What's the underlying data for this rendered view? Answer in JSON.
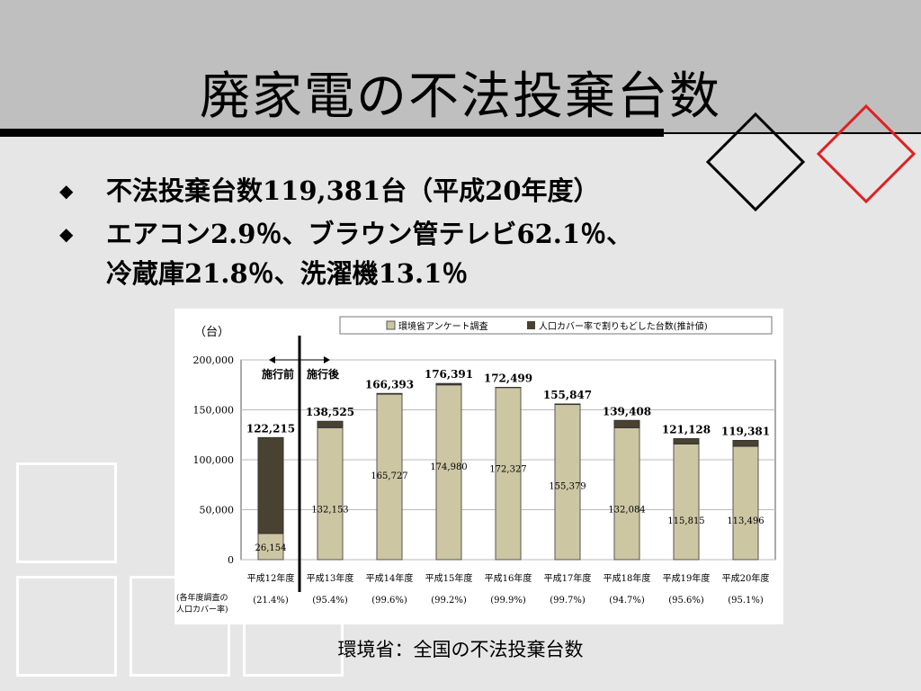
{
  "slide": {
    "title": "廃家電の不法投棄台数"
  },
  "bullets": [
    {
      "lines": [
        "不法投棄台数119,381台（平成20年度）"
      ]
    },
    {
      "lines": [
        "エアコン2.9％、ブラウン管テレビ62.1％、",
        "冷蔵庫21.8％、洗濯機13.1％"
      ]
    }
  ],
  "caption": "環境省：全国の不法投棄台数",
  "colors": {
    "survey": "#cdc6a3",
    "estimate": "#4a4230",
    "header": "#bfbfbf",
    "accent": "#e02020"
  },
  "chart_data": {
    "type": "bar",
    "stacked": true,
    "unit_label": "（台）",
    "categories": [
      "平成12年度",
      "平成13年度",
      "平成14年度",
      "平成15年度",
      "平成16年度",
      "平成17年度",
      "平成18年度",
      "平成19年度",
      "平成20年度"
    ],
    "coverage": [
      "(21.4%)",
      "(95.4%)",
      "(99.6%)",
      "(99.2%)",
      "(99.9%)",
      "(99.7%)",
      "(94.7%)",
      "(95.6%)",
      "(95.1%)"
    ],
    "coverage_label": [
      "(各年度調査の",
      "人口カバー率)"
    ],
    "series": [
      {
        "name": "環境省アンケート調査",
        "values": [
          26154,
          132153,
          165727,
          174980,
          172327,
          155379,
          132084,
          115815,
          113496
        ],
        "labels": [
          "26,154",
          "132,153",
          "165,727",
          "174,980",
          "172,327",
          "155,379",
          "132,084",
          "115,815",
          "113,496"
        ]
      },
      {
        "name": "人口カバー率で割りもどした台数(推計値)",
        "values": [
          96061,
          6372,
          666,
          1411,
          172,
          468,
          7324,
          5313,
          5885
        ]
      }
    ],
    "totals": [
      122215,
      138525,
      166393,
      176391,
      172499,
      155847,
      139408,
      121128,
      119381
    ],
    "total_labels": [
      "122,215",
      "138,525",
      "166,393",
      "176,391",
      "172,499",
      "155,847",
      "139,408",
      "121,128",
      "119,381"
    ],
    "ylim": [
      0,
      200000
    ],
    "yticks": [
      0,
      50000,
      100000,
      150000,
      200000
    ],
    "ytick_labels": [
      "0",
      "50,000",
      "100,000",
      "150,000",
      "200,000"
    ],
    "grid": true,
    "legend": "top",
    "annotations": {
      "before": "施行前",
      "after": "施行後"
    }
  }
}
